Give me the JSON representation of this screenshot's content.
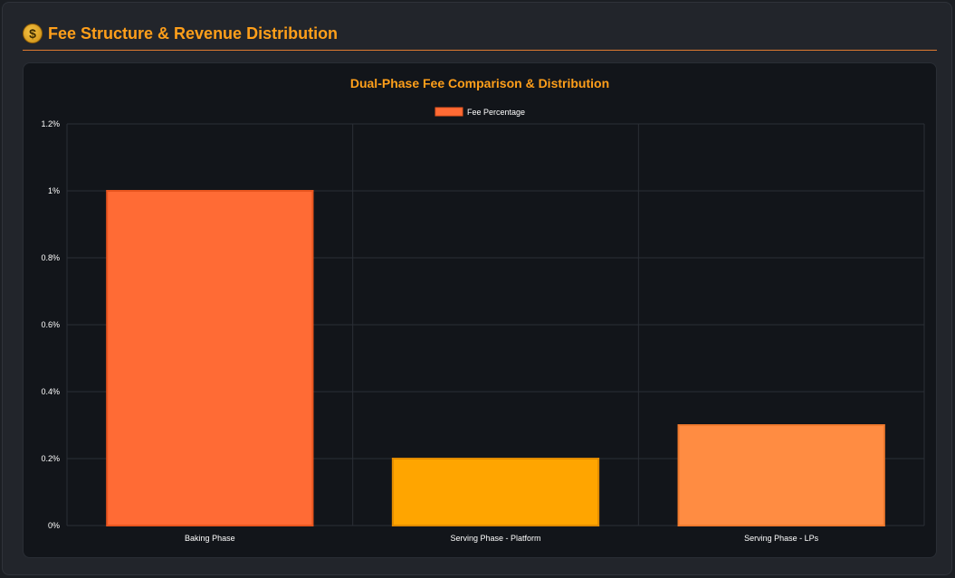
{
  "header": {
    "icon": "money-bag-icon",
    "icon_glyph": "$",
    "title": "Fee Structure & Revenue Distribution"
  },
  "chart_data": {
    "type": "bar",
    "title": "Dual-Phase Fee Comparison & Distribution",
    "categories": [
      "Baking Phase",
      "Serving Phase - Platform",
      "Serving Phase - LPs"
    ],
    "series": [
      {
        "name": "Fee Percentage",
        "values": [
          1.0,
          0.2,
          0.3
        ],
        "colors": [
          "#ff6b35",
          "#ffa500",
          "#ff8c42"
        ],
        "border_colors": [
          "#e8551f",
          "#e08a00",
          "#f07a2e"
        ]
      }
    ],
    "ylim": [
      0,
      1.2
    ],
    "yticks": [
      "0%",
      "0.2%",
      "0.4%",
      "0.6%",
      "0.8%",
      "1%",
      "1.2%"
    ],
    "ytick_values": [
      0,
      0.2,
      0.4,
      0.6,
      0.8,
      1.0,
      1.2
    ],
    "xlabel": "",
    "ylabel": "",
    "grid": true,
    "legend_position": "top-center"
  }
}
